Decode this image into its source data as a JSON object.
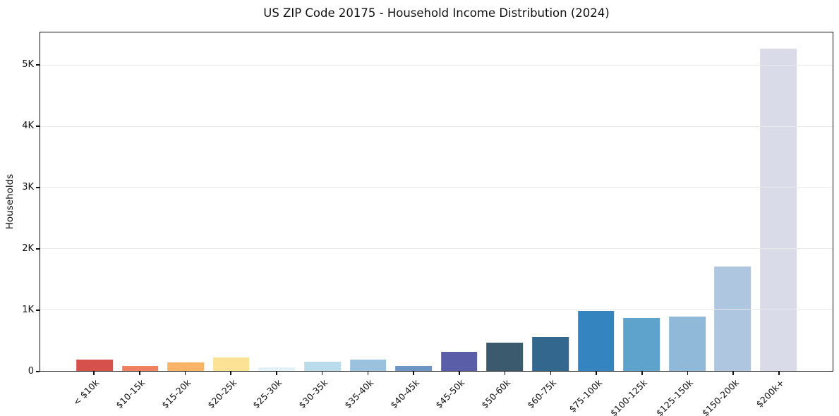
{
  "chart_data": {
    "type": "bar",
    "title": "US ZIP Code 20175 - Household Income Distribution (2024)",
    "xlabel": "",
    "ylabel": "Households",
    "categories": [
      "< $10k",
      "$10-15k",
      "$15-20k",
      "$20-25k",
      "$25-30k",
      "$30-35k",
      "$35-40k",
      "$40-45k",
      "$45-50k",
      "$50-60k",
      "$60-75k",
      "$75-100k",
      "$100-125k",
      "$125-150k",
      "$150-200k",
      "$200k+"
    ],
    "values": [
      190,
      85,
      140,
      215,
      55,
      145,
      190,
      80,
      315,
      460,
      550,
      985,
      870,
      885,
      1710,
      5280
    ],
    "bar_colors": [
      "#d7514c",
      "#ef8062",
      "#f9b468",
      "#fbe295",
      "#e2f2f8",
      "#badcea",
      "#9ac1de",
      "#6e94c4",
      "#5a5ea9",
      "#3b5a6e",
      "#33678e",
      "#3484c0",
      "#5da3cb",
      "#90b8d8",
      "#aec6e0",
      "#d9dbe8"
    ],
    "ylim": [
      0,
      5545
    ],
    "yticks": [
      {
        "value": 0,
        "label": "0"
      },
      {
        "value": 1000,
        "label": "1K"
      },
      {
        "value": 2000,
        "label": "2K"
      },
      {
        "value": 3000,
        "label": "3K"
      },
      {
        "value": 4000,
        "label": "4K"
      },
      {
        "value": 5000,
        "label": "5K"
      }
    ],
    "grid": "horizontal-only",
    "legend": "none",
    "colors": {
      "background": "#ffffff",
      "spine": "#111111",
      "gridline": "#e9e9e9",
      "text": "#111111"
    }
  }
}
